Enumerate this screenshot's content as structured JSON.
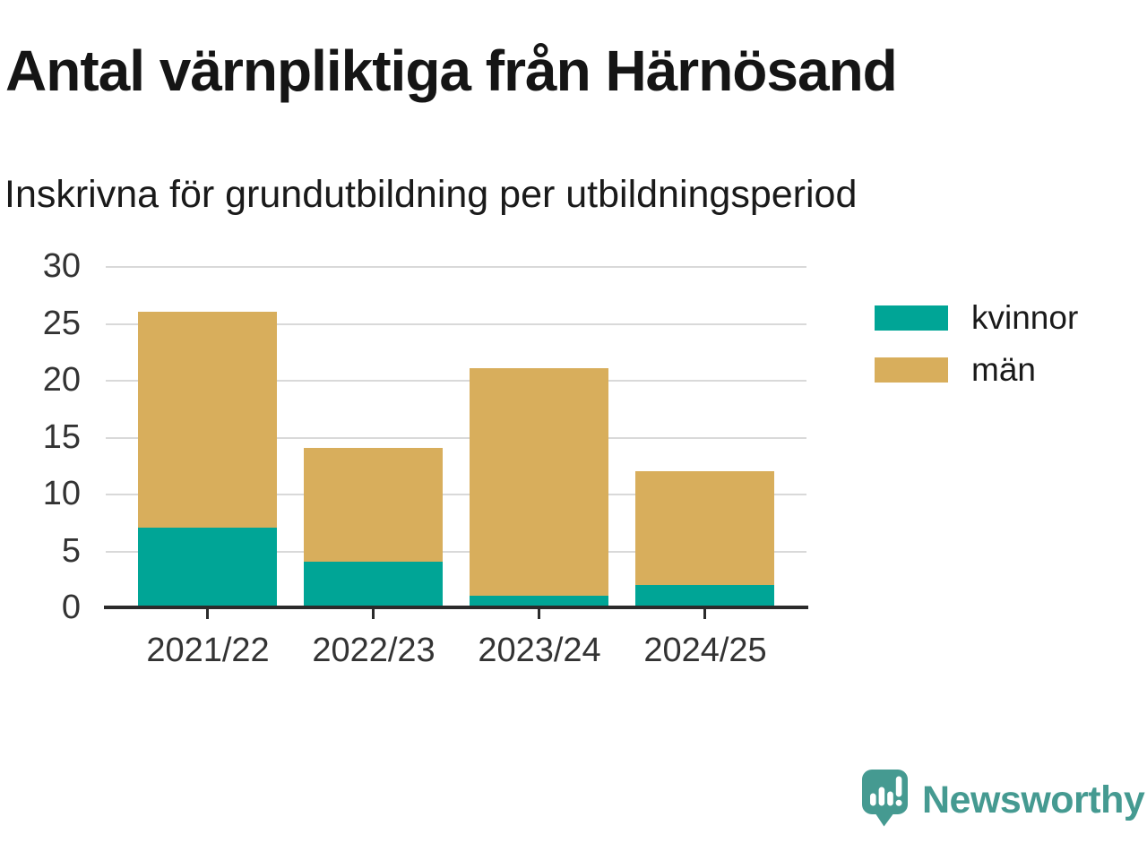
{
  "header": {
    "title": "Antal värnpliktiga från Härnösand",
    "subtitle": "Inskrivna för grundutbildning per utbildningsperiod"
  },
  "chart_data": {
    "type": "bar",
    "stacked": true,
    "title": "Antal värnpliktiga från Härnösand",
    "subtitle": "Inskrivna för grundutbildning per utbildningsperiod",
    "xlabel": "",
    "ylabel": "",
    "categories": [
      "2021/22",
      "2022/23",
      "2023/24",
      "2024/25"
    ],
    "series": [
      {
        "name": "kvinnor",
        "color": "#00A596",
        "values": [
          7,
          4,
          1,
          2
        ]
      },
      {
        "name": "män",
        "color": "#D8AE5C",
        "values": [
          19,
          10,
          20,
          10
        ]
      }
    ],
    "totals": [
      26,
      14,
      21,
      12
    ],
    "ylim": [
      0,
      30
    ],
    "yticks": [
      0,
      5,
      10,
      15,
      20,
      25,
      30
    ],
    "grid": true,
    "legend_position": "right"
  },
  "footer": {
    "brand": "Newsworthy",
    "brand_color": "#459A91",
    "logo_icon": "speech-bubble-bar-chart-icon"
  }
}
